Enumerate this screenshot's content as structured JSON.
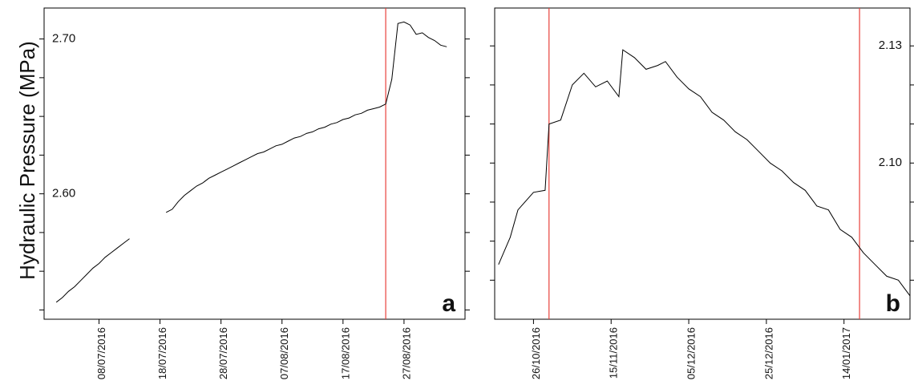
{
  "chart_data": [
    {
      "type": "line",
      "y_label": "Hydraulic Pressure (MPa)",
      "annotation": "a",
      "x": [
        "2016-07-01",
        "2016-07-02",
        "2016-07-03",
        "2016-07-04",
        "2016-07-05",
        "2016-07-06",
        "2016-07-07",
        "2016-07-08",
        "2016-07-09",
        "2016-07-10",
        "2016-07-11",
        "2016-07-12",
        "2016-07-13",
        "2016-07-14",
        "2016-07-15",
        "2016-07-16",
        "2016-07-17",
        "2016-07-18",
        "2016-07-19",
        "2016-07-20",
        "2016-07-21",
        "2016-07-22",
        "2016-07-23",
        "2016-07-24",
        "2016-07-25",
        "2016-07-26",
        "2016-07-27",
        "2016-07-28",
        "2016-07-29",
        "2016-07-30",
        "2016-07-31",
        "2016-08-01",
        "2016-08-02",
        "2016-08-03",
        "2016-08-04",
        "2016-08-05",
        "2016-08-06",
        "2016-08-07",
        "2016-08-08",
        "2016-08-09",
        "2016-08-10",
        "2016-08-11",
        "2016-08-12",
        "2016-08-13",
        "2016-08-14",
        "2016-08-15",
        "2016-08-16",
        "2016-08-17",
        "2016-08-18",
        "2016-08-19",
        "2016-08-20",
        "2016-08-21",
        "2016-08-22",
        "2016-08-23",
        "2016-08-24",
        "2016-08-25",
        "2016-08-26",
        "2016-08-27",
        "2016-08-28",
        "2016-08-29",
        "2016-08-30",
        "2016-08-31",
        "2016-09-01",
        "2016-09-02",
        "2016-09-03"
      ],
      "values": [
        2.53,
        2.533,
        2.537,
        2.54,
        2.544,
        2.548,
        2.552,
        2.555,
        2.559,
        2.562,
        2.565,
        2.568,
        2.571,
        null,
        null,
        null,
        null,
        null,
        2.588,
        2.59,
        2.595,
        2.599,
        2.602,
        2.605,
        2.607,
        2.61,
        2.612,
        2.614,
        2.616,
        2.618,
        2.62,
        2.622,
        2.624,
        2.626,
        2.627,
        2.629,
        2.631,
        2.632,
        2.634,
        2.636,
        2.637,
        2.639,
        2.64,
        2.642,
        2.643,
        2.645,
        2.646,
        2.648,
        2.649,
        2.651,
        2.652,
        2.654,
        2.655,
        2.656,
        2.658,
        2.674,
        2.71,
        2.711,
        2.709,
        2.703,
        2.704,
        2.701,
        2.699,
        2.696,
        2.695
      ],
      "color": "#000000",
      "xlim": [
        "2016-06-29",
        "2016-09-06"
      ],
      "xticks": [
        {
          "value": "2016-07-08",
          "label": "08/07/2016"
        },
        {
          "value": "2016-07-18",
          "label": "18/07/2016"
        },
        {
          "value": "2016-07-28",
          "label": "28/07/2016"
        },
        {
          "value": "2016-08-07",
          "label": "07/08/2016"
        },
        {
          "value": "2016-08-17",
          "label": "17/08/2016"
        },
        {
          "value": "2016-08-27",
          "label": "27/08/2016"
        }
      ],
      "ylim": [
        2.519,
        2.72
      ],
      "yticks": [
        {
          "value": 2.6,
          "label": "2.60"
        },
        {
          "value": 2.7,
          "label": "2.70"
        }
      ],
      "yminor_ticks": [
        2.525,
        2.55,
        2.575,
        2.625,
        2.65,
        2.675
      ],
      "ytick_label_side": "left",
      "vlines": [
        "2016-08-24"
      ],
      "vline_color": "#e8403a"
    },
    {
      "type": "line",
      "annotation": "b",
      "x": [
        "2016-10-17",
        "2016-10-20",
        "2016-10-22",
        "2016-10-26",
        "2016-10-29",
        "2016-10-30",
        "2016-11-02",
        "2016-11-05",
        "2016-11-08",
        "2016-11-11",
        "2016-11-14",
        "2016-11-17",
        "2016-11-18",
        "2016-11-21",
        "2016-11-24",
        "2016-11-27",
        "2016-11-29",
        "2016-12-02",
        "2016-12-05",
        "2016-12-08",
        "2016-12-11",
        "2016-12-14",
        "2016-12-17",
        "2016-12-20",
        "2016-12-23",
        "2016-12-26",
        "2016-12-29",
        "2017-01-01",
        "2017-01-04",
        "2017-01-07",
        "2017-01-10",
        "2017-01-13",
        "2017-01-16",
        "2017-01-19",
        "2017-01-22",
        "2017-01-25",
        "2017-01-28",
        "2017-01-31"
      ],
      "values": [
        2.074,
        2.081,
        2.088,
        2.0925,
        2.093,
        2.11,
        2.111,
        2.12,
        2.123,
        2.1195,
        2.121,
        2.117,
        2.129,
        2.127,
        2.124,
        2.125,
        2.126,
        2.122,
        2.119,
        2.117,
        2.113,
        2.111,
        2.108,
        2.106,
        2.103,
        2.1,
        2.098,
        2.095,
        2.093,
        2.089,
        2.088,
        2.083,
        2.081,
        2.077,
        2.074,
        2.071,
        2.07,
        2.066
      ],
      "color": "#000000",
      "xlim": [
        "2016-10-16",
        "2017-01-31"
      ],
      "xticks": [
        {
          "value": "2016-10-26",
          "label": "26/10/2016"
        },
        {
          "value": "2016-11-15",
          "label": "15/11/2016"
        },
        {
          "value": "2016-12-05",
          "label": "05/12/2016"
        },
        {
          "value": "2016-12-25",
          "label": "25/12/2016"
        },
        {
          "value": "2017-01-14",
          "label": "14/01/2017"
        }
      ],
      "ylim": [
        2.06,
        2.1397
      ],
      "yticks": [
        {
          "value": 2.1,
          "label": "2.10"
        },
        {
          "value": 2.13,
          "label": "2.13"
        }
      ],
      "yminor_ticks": [
        2.07,
        2.08,
        2.09,
        2.11,
        2.12
      ],
      "ytick_label_side": "right",
      "vlines": [
        "2016-10-30",
        "2017-01-18"
      ],
      "vline_color": "#e8403a"
    }
  ]
}
